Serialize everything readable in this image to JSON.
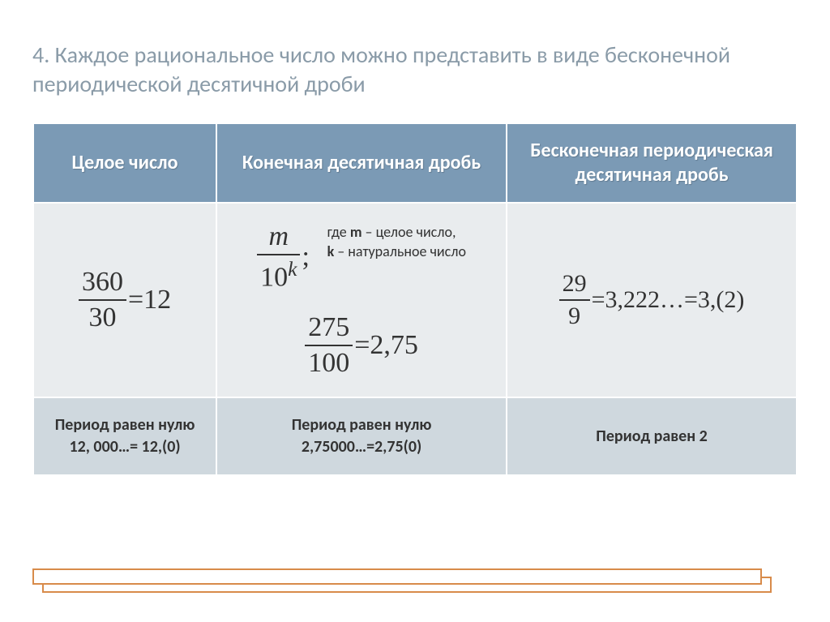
{
  "title": "4. Каждое рациональное число можно представить в виде бесконечной периодической  десятичной дроби",
  "headers": {
    "c1": "Целое   число",
    "c2": "Конечная десятичная дробь",
    "c3": "Бесконечная периодическая десятичная  дробь"
  },
  "cell1": {
    "frac_num": "360",
    "frac_den": "30",
    "eq": "=12"
  },
  "cell2": {
    "gen_num": "m",
    "gen_den_base": "10",
    "gen_den_exp": "k",
    "semicolon": ";",
    "where_prefix": "где   ",
    "where_m_label": "m",
    "where_m_text": " – целое число,",
    "where_k_label": "k",
    "where_k_text": " – натуральное число",
    "ex_num": "275",
    "ex_den": "100",
    "ex_eq": "=2,75"
  },
  "cell3": {
    "frac_num": "29",
    "frac_den": "9",
    "eq": "=3,222…=3,(2)"
  },
  "footers": {
    "c1_l1": "Период равен нулю",
    "c1_l2": "12, 000…= 12,(0)",
    "c2_l1": "Период равен нулю",
    "c2_l2": "2,75000…=2,75(0)",
    "c3_l1": "Период равен 2"
  },
  "colors": {
    "title": "#8a9ba8",
    "header_bg": "#7b9ab5",
    "content_bg": "#e9ecee",
    "footer_bg": "#cfd8de",
    "decor_border": "#d88b4a"
  }
}
